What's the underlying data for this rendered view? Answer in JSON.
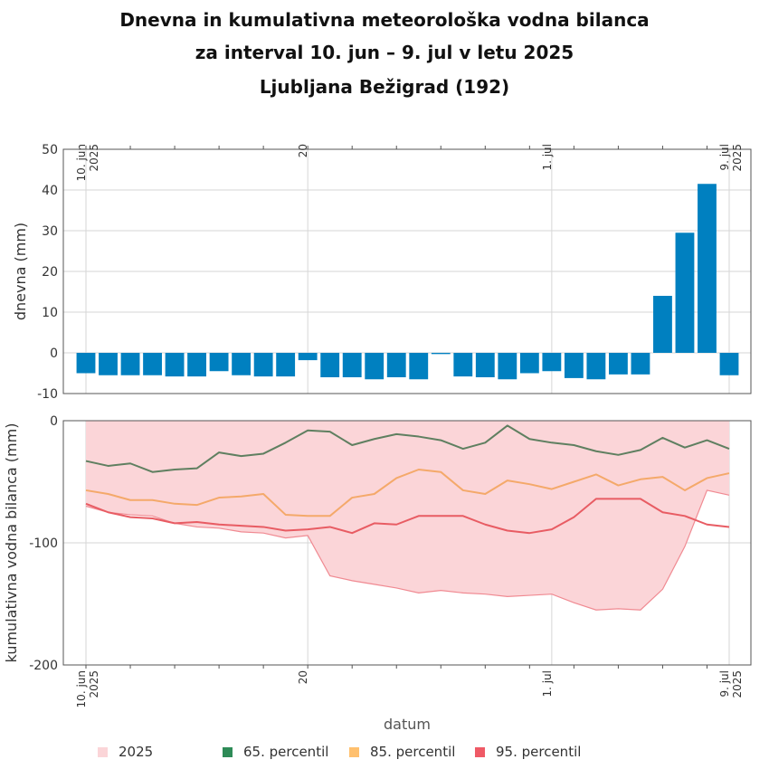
{
  "chart_data": {
    "type": "bar+area+line",
    "title_lines": [
      "Dnevna in kumulativna meteorološka vodna bilanca",
      "za interval 10. jun – 9. jul v letu 2025",
      "Ljubljana Bežigrad (192)"
    ],
    "xlabel": "datum",
    "x_tick_labels": [
      {
        "day": 0,
        "label": "10. jun",
        "sub": "2025"
      },
      {
        "day": 10,
        "label": "20",
        "sub": ""
      },
      {
        "day": 21,
        "label": "1. jul",
        "sub": ""
      },
      {
        "day": 29,
        "label": "9. jul",
        "sub": "2025"
      }
    ],
    "daily": {
      "ylabel": "dnevna (mm)",
      "ylim": [
        -10,
        50
      ],
      "yticks": [
        -10,
        0,
        10,
        20,
        30,
        40,
        50
      ],
      "color": "#0080c0",
      "values": [
        -5.0,
        -5.5,
        -5.5,
        -5.5,
        -5.8,
        -5.8,
        -4.5,
        -5.5,
        -5.8,
        -5.8,
        -1.8,
        -6.0,
        -6.0,
        -6.5,
        -6.0,
        -6.5,
        -0.3,
        -5.8,
        -6.0,
        -6.5,
        -5.0,
        -4.5,
        -6.2,
        -6.5,
        -5.3,
        -5.3,
        14.0,
        29.5,
        41.5,
        -5.5
      ]
    },
    "cumulative": {
      "ylabel": "kumulativna vodna bilanca (mm)",
      "ylim": [
        -200,
        0
      ],
      "yticks": [
        -200,
        -100,
        0
      ],
      "area": {
        "name": "2025",
        "color": "#fbd5d8",
        "line_color": "#f08a92",
        "upper": [
          0,
          0,
          0,
          0,
          0,
          0,
          0,
          0,
          0,
          0,
          0,
          0,
          0,
          0,
          0,
          0,
          0,
          0,
          0,
          0,
          0,
          0,
          0,
          0,
          0,
          0,
          0,
          0,
          0,
          0
        ],
        "lower": [
          -70,
          -75,
          -77,
          -78,
          -84,
          -87,
          -88,
          -91,
          -92,
          -96,
          -94,
          -127,
          -131,
          -134,
          -137,
          -141,
          -139,
          -141,
          -142,
          -144,
          -143,
          -142,
          -149,
          -155,
          -154,
          -155,
          -138,
          -103,
          -57,
          -61
        ]
      },
      "series": [
        {
          "name": "65. percentil",
          "color": "#5f7f60",
          "legend_color": "#2e8b57",
          "values": [
            -33,
            -37,
            -35,
            -42,
            -40,
            -39,
            -26,
            -29,
            -27,
            -18,
            -8,
            -9,
            -20,
            -15,
            -11,
            -13,
            -16,
            -23,
            -18,
            -4,
            -15,
            -18,
            -20,
            -25,
            -28,
            -24,
            -14,
            -22,
            -16,
            -23
          ]
        },
        {
          "name": "85. percentil",
          "color": "#f4a96a",
          "legend_color": "#ffc06e",
          "values": [
            -57,
            -60,
            -65,
            -65,
            -68,
            -69,
            -63,
            -62,
            -60,
            -77,
            -78,
            -78,
            -63,
            -60,
            -47,
            -40,
            -42,
            -57,
            -60,
            -49,
            -52,
            -56,
            -50,
            -44,
            -53,
            -48,
            -46,
            -57,
            -47,
            -43
          ]
        },
        {
          "name": "95. percentil",
          "color": "#e85c63",
          "legend_color": "#ef5a66",
          "values": [
            -68,
            -75,
            -79,
            -80,
            -84,
            -83,
            -85,
            -86,
            -87,
            -90,
            -89,
            -87,
            -92,
            -84,
            -85,
            -78,
            -78,
            -78,
            -85,
            -90,
            -92,
            -89,
            -79,
            -64,
            -64,
            -64,
            -75,
            -78,
            -85,
            -87
          ]
        }
      ]
    }
  }
}
